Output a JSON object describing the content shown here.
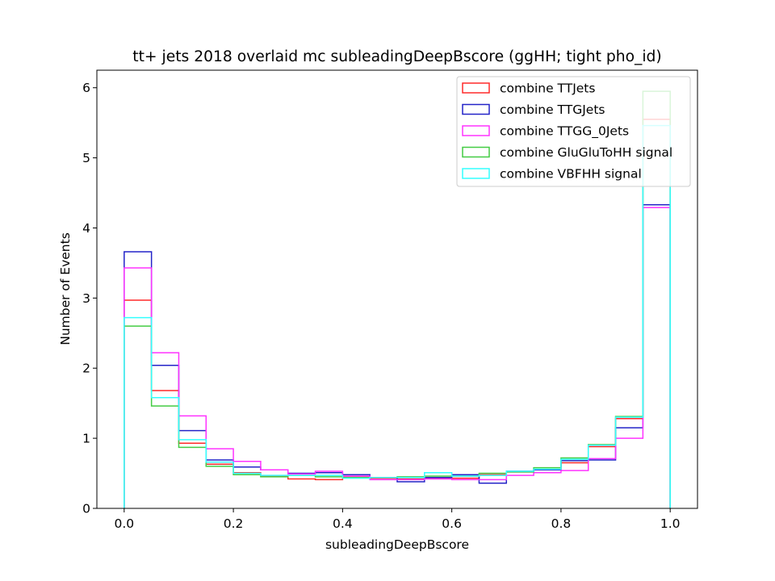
{
  "chart_data": {
    "type": "histogram-step",
    "title": "tt+ jets 2018 overlaid mc subleadingDeepBscore (ggHH; tight pho_id)",
    "xlabel": "subleadingDeepBscore",
    "ylabel": "Number of Events",
    "xlim": [
      -0.05,
      1.05
    ],
    "ylim": [
      0,
      6.25
    ],
    "xticks": [
      0.0,
      0.2,
      0.4,
      0.6,
      0.8,
      1.0
    ],
    "xtick_labels": [
      "0.0",
      "0.2",
      "0.4",
      "0.6",
      "0.8",
      "1.0"
    ],
    "yticks": [
      0,
      1,
      2,
      3,
      4,
      5,
      6
    ],
    "ytick_labels": [
      "0",
      "1",
      "2",
      "3",
      "4",
      "5",
      "6"
    ],
    "grid": false,
    "legend_position": "top-right",
    "bin_edges": [
      0.0,
      0.05,
      0.1,
      0.15,
      0.2,
      0.25,
      0.3,
      0.35,
      0.4,
      0.45,
      0.5,
      0.55,
      0.6,
      0.65,
      0.7,
      0.75,
      0.8,
      0.85,
      0.9,
      0.95,
      1.0
    ],
    "series": [
      {
        "name": "combine TTJets",
        "color": "#ff2a2a",
        "values": [
          2.97,
          1.68,
          0.93,
          0.63,
          0.51,
          0.46,
          0.42,
          0.41,
          0.45,
          0.43,
          0.42,
          0.43,
          0.43,
          0.48,
          0.52,
          0.55,
          0.65,
          0.88,
          1.28,
          5.55
        ]
      },
      {
        "name": "combine TTGJets",
        "color": "#2424c8",
        "values": [
          3.66,
          2.04,
          1.11,
          0.69,
          0.59,
          0.55,
          0.5,
          0.51,
          0.48,
          0.44,
          0.38,
          0.44,
          0.48,
          0.36,
          0.53,
          0.55,
          0.68,
          0.69,
          1.15,
          4.33
        ]
      },
      {
        "name": "combine TTGG_0Jets",
        "color": "#ff33ff",
        "values": [
          3.43,
          2.22,
          1.32,
          0.85,
          0.67,
          0.55,
          0.49,
          0.53,
          0.46,
          0.41,
          0.41,
          0.42,
          0.41,
          0.41,
          0.47,
          0.51,
          0.54,
          0.71,
          1.0,
          4.29
        ]
      },
      {
        "name": "combine GluGluToHH signal",
        "color": "#44cc44",
        "values": [
          2.6,
          1.46,
          0.87,
          0.6,
          0.48,
          0.45,
          0.47,
          0.45,
          0.44,
          0.44,
          0.45,
          0.46,
          0.46,
          0.5,
          0.52,
          0.58,
          0.72,
          0.91,
          1.31,
          5.95
        ]
      },
      {
        "name": "combine VBFHH signal",
        "color": "#33ffff",
        "values": [
          2.72,
          1.58,
          0.98,
          0.66,
          0.5,
          0.47,
          0.47,
          0.47,
          0.43,
          0.44,
          0.44,
          0.51,
          0.46,
          0.47,
          0.53,
          0.56,
          0.7,
          0.9,
          1.3,
          5.46
        ]
      }
    ]
  }
}
